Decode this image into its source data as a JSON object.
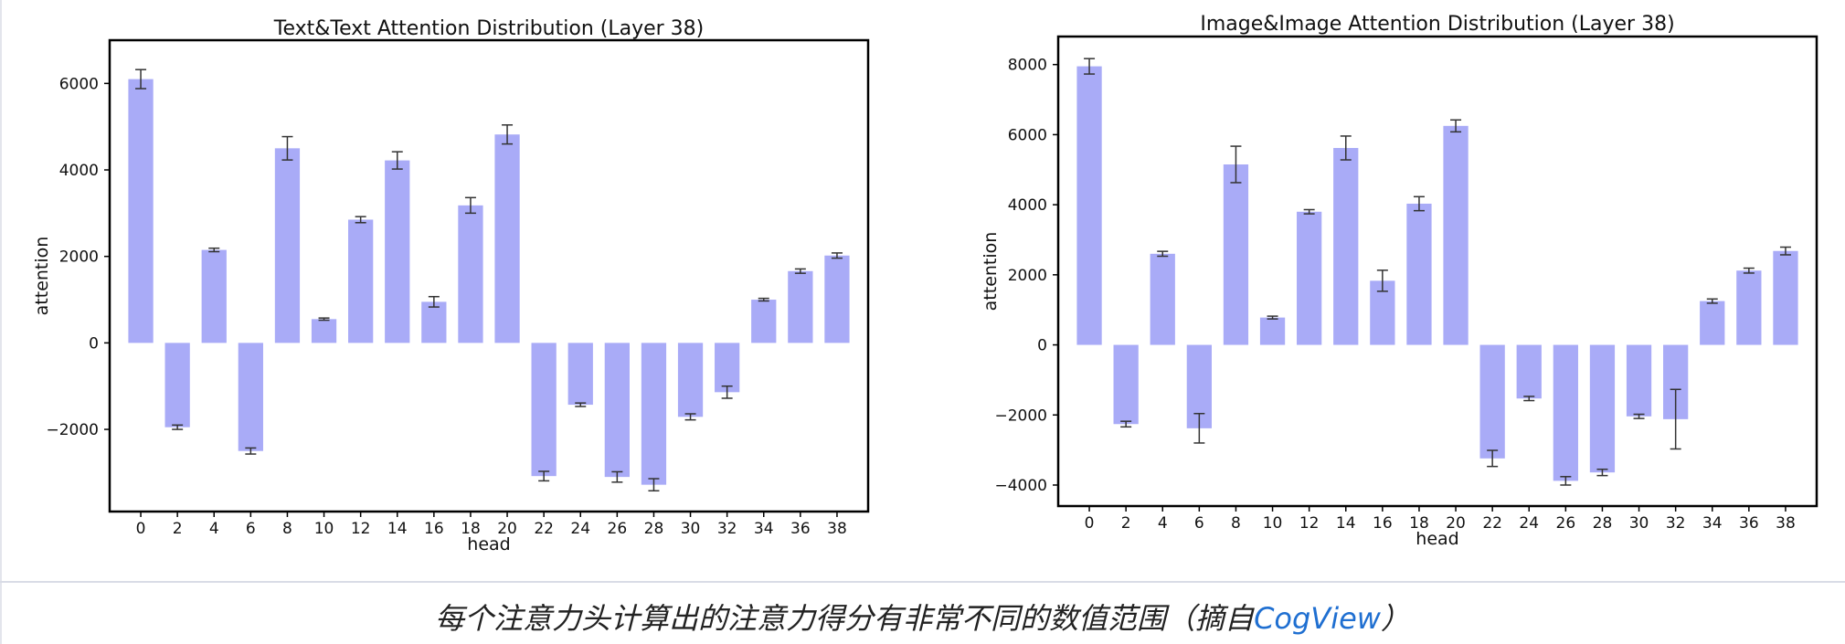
{
  "caption": {
    "text": "每个注意力头计算出的注意力得分有非常不同的数值范围（摘自",
    "link": "CogView",
    "close": "）"
  },
  "colors": {
    "bar": "#a9abf7",
    "error": "#333333",
    "link": "#1f6fd1"
  },
  "chart_data": [
    {
      "type": "bar",
      "title": "Text&Text Attention Distribution (Layer 38)",
      "xlabel": "head",
      "ylabel": "attention",
      "categories": [
        "0",
        "2",
        "4",
        "6",
        "8",
        "10",
        "12",
        "14",
        "16",
        "18",
        "20",
        "22",
        "24",
        "26",
        "28",
        "30",
        "32",
        "34",
        "36",
        "38"
      ],
      "values": [
        6100,
        -1950,
        2150,
        -2500,
        4500,
        550,
        2850,
        4220,
        950,
        3180,
        4820,
        -3080,
        -1430,
        -3100,
        -3280,
        -1710,
        -1140,
        1000,
        1660,
        2020
      ],
      "errors": [
        220,
        50,
        40,
        70,
        270,
        25,
        70,
        200,
        120,
        180,
        220,
        110,
        40,
        120,
        140,
        70,
        140,
        30,
        50,
        60
      ],
      "ylim": [
        -3900,
        7000
      ],
      "yticks": [
        6000,
        4000,
        2000,
        0,
        -2000
      ],
      "ytick_labels": [
        "6000",
        "4000",
        "2000",
        "0",
        "−2000"
      ],
      "grid": false
    },
    {
      "type": "bar",
      "title": "Image&Image Attention Distribution (Layer 38)",
      "xlabel": "head",
      "ylabel": "attention",
      "categories": [
        "0",
        "2",
        "4",
        "6",
        "8",
        "10",
        "12",
        "14",
        "16",
        "18",
        "20",
        "22",
        "24",
        "26",
        "28",
        "30",
        "32",
        "34",
        "36",
        "38"
      ],
      "values": [
        7950,
        -2260,
        2600,
        -2380,
        5150,
        780,
        3800,
        5620,
        1830,
        4030,
        6250,
        -3240,
        -1530,
        -3880,
        -3640,
        -2040,
        -2120,
        1250,
        2120,
        2680
      ],
      "errors": [
        220,
        80,
        70,
        420,
        520,
        40,
        60,
        340,
        300,
        200,
        170,
        230,
        60,
        120,
        90,
        60,
        850,
        60,
        70,
        110
      ],
      "ylim": [
        -4600,
        8800
      ],
      "yticks": [
        8000,
        6000,
        4000,
        2000,
        0,
        -2000,
        -4000
      ],
      "ytick_labels": [
        "8000",
        "6000",
        "4000",
        "2000",
        "0",
        "−2000",
        "−4000"
      ],
      "grid": false
    }
  ]
}
